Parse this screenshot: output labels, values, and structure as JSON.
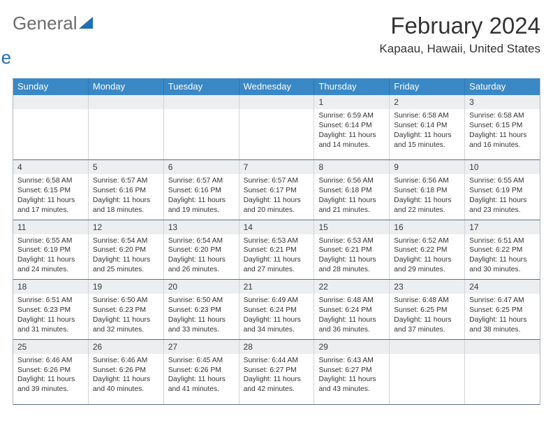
{
  "logo": {
    "word1": "General",
    "word2": "Blue"
  },
  "title": "February 2024",
  "location": "Kapaau, Hawaii, United States",
  "colors": {
    "header_bg": "#3a88c6",
    "daynum_bg": "#eceef0",
    "week_border": "#5a6e85",
    "cell_border": "#cfd4d9",
    "logo_gray": "#6c6c6c",
    "logo_blue": "#1f6fb2",
    "text": "#333333"
  },
  "day_headers": [
    "Sunday",
    "Monday",
    "Tuesday",
    "Wednesday",
    "Thursday",
    "Friday",
    "Saturday"
  ],
  "weeks": [
    [
      null,
      null,
      null,
      null,
      {
        "num": "1",
        "sunrise": "6:59 AM",
        "sunset": "6:14 PM",
        "daylight": "11 hours and 14 minutes."
      },
      {
        "num": "2",
        "sunrise": "6:58 AM",
        "sunset": "6:14 PM",
        "daylight": "11 hours and 15 minutes."
      },
      {
        "num": "3",
        "sunrise": "6:58 AM",
        "sunset": "6:15 PM",
        "daylight": "11 hours and 16 minutes."
      }
    ],
    [
      {
        "num": "4",
        "sunrise": "6:58 AM",
        "sunset": "6:15 PM",
        "daylight": "11 hours and 17 minutes."
      },
      {
        "num": "5",
        "sunrise": "6:57 AM",
        "sunset": "6:16 PM",
        "daylight": "11 hours and 18 minutes."
      },
      {
        "num": "6",
        "sunrise": "6:57 AM",
        "sunset": "6:16 PM",
        "daylight": "11 hours and 19 minutes."
      },
      {
        "num": "7",
        "sunrise": "6:57 AM",
        "sunset": "6:17 PM",
        "daylight": "11 hours and 20 minutes."
      },
      {
        "num": "8",
        "sunrise": "6:56 AM",
        "sunset": "6:18 PM",
        "daylight": "11 hours and 21 minutes."
      },
      {
        "num": "9",
        "sunrise": "6:56 AM",
        "sunset": "6:18 PM",
        "daylight": "11 hours and 22 minutes."
      },
      {
        "num": "10",
        "sunrise": "6:55 AM",
        "sunset": "6:19 PM",
        "daylight": "11 hours and 23 minutes."
      }
    ],
    [
      {
        "num": "11",
        "sunrise": "6:55 AM",
        "sunset": "6:19 PM",
        "daylight": "11 hours and 24 minutes."
      },
      {
        "num": "12",
        "sunrise": "6:54 AM",
        "sunset": "6:20 PM",
        "daylight": "11 hours and 25 minutes."
      },
      {
        "num": "13",
        "sunrise": "6:54 AM",
        "sunset": "6:20 PM",
        "daylight": "11 hours and 26 minutes."
      },
      {
        "num": "14",
        "sunrise": "6:53 AM",
        "sunset": "6:21 PM",
        "daylight": "11 hours and 27 minutes."
      },
      {
        "num": "15",
        "sunrise": "6:53 AM",
        "sunset": "6:21 PM",
        "daylight": "11 hours and 28 minutes."
      },
      {
        "num": "16",
        "sunrise": "6:52 AM",
        "sunset": "6:22 PM",
        "daylight": "11 hours and 29 minutes."
      },
      {
        "num": "17",
        "sunrise": "6:51 AM",
        "sunset": "6:22 PM",
        "daylight": "11 hours and 30 minutes."
      }
    ],
    [
      {
        "num": "18",
        "sunrise": "6:51 AM",
        "sunset": "6:23 PM",
        "daylight": "11 hours and 31 minutes."
      },
      {
        "num": "19",
        "sunrise": "6:50 AM",
        "sunset": "6:23 PM",
        "daylight": "11 hours and 32 minutes."
      },
      {
        "num": "20",
        "sunrise": "6:50 AM",
        "sunset": "6:23 PM",
        "daylight": "11 hours and 33 minutes."
      },
      {
        "num": "21",
        "sunrise": "6:49 AM",
        "sunset": "6:24 PM",
        "daylight": "11 hours and 34 minutes."
      },
      {
        "num": "22",
        "sunrise": "6:48 AM",
        "sunset": "6:24 PM",
        "daylight": "11 hours and 36 minutes."
      },
      {
        "num": "23",
        "sunrise": "6:48 AM",
        "sunset": "6:25 PM",
        "daylight": "11 hours and 37 minutes."
      },
      {
        "num": "24",
        "sunrise": "6:47 AM",
        "sunset": "6:25 PM",
        "daylight": "11 hours and 38 minutes."
      }
    ],
    [
      {
        "num": "25",
        "sunrise": "6:46 AM",
        "sunset": "6:26 PM",
        "daylight": "11 hours and 39 minutes."
      },
      {
        "num": "26",
        "sunrise": "6:46 AM",
        "sunset": "6:26 PM",
        "daylight": "11 hours and 40 minutes."
      },
      {
        "num": "27",
        "sunrise": "6:45 AM",
        "sunset": "6:26 PM",
        "daylight": "11 hours and 41 minutes."
      },
      {
        "num": "28",
        "sunrise": "6:44 AM",
        "sunset": "6:27 PM",
        "daylight": "11 hours and 42 minutes."
      },
      {
        "num": "29",
        "sunrise": "6:43 AM",
        "sunset": "6:27 PM",
        "daylight": "11 hours and 43 minutes."
      },
      null,
      null
    ]
  ],
  "labels": {
    "sunrise": "Sunrise:",
    "sunset": "Sunset:",
    "daylight": "Daylight:"
  }
}
